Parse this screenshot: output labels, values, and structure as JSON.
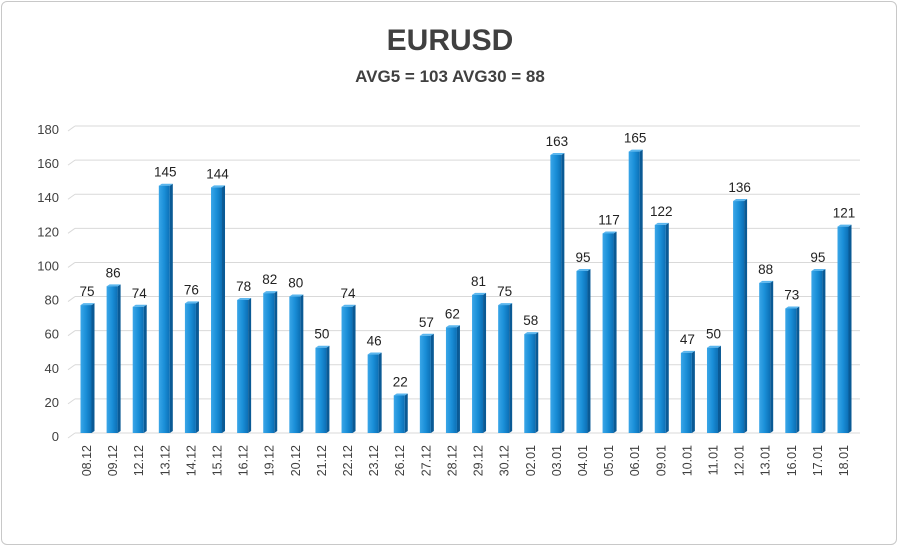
{
  "chart_data": {
    "type": "bar",
    "title": "EURUSD",
    "subtitle": "AVG5 = 103 AVG30 = 88",
    "xlabel": "",
    "ylabel": "",
    "ylim": [
      0,
      180
    ],
    "yticks": [
      0,
      20,
      40,
      60,
      80,
      100,
      120,
      140,
      160,
      180
    ],
    "grid": true,
    "legend": "none",
    "bar_color": "#1a8fd8",
    "categories": [
      "08.12",
      "09.12",
      "12.12",
      "13.12",
      "14.12",
      "15.12",
      "16.12",
      "19.12",
      "20.12",
      "21.12",
      "22.12",
      "23.12",
      "26.12",
      "27.12",
      "28.12",
      "29.12",
      "30.12",
      "02.01",
      "03.01",
      "04.01",
      "05.01",
      "06.01",
      "09.01",
      "10.01",
      "11.01",
      "12.01",
      "13.01",
      "16.01",
      "17.01",
      "18.01"
    ],
    "values": [
      75,
      86,
      74,
      145,
      76,
      144,
      78,
      82,
      80,
      50,
      74,
      46,
      22,
      57,
      62,
      81,
      75,
      58,
      163,
      95,
      117,
      165,
      122,
      47,
      50,
      136,
      88,
      73,
      95,
      121
    ]
  }
}
